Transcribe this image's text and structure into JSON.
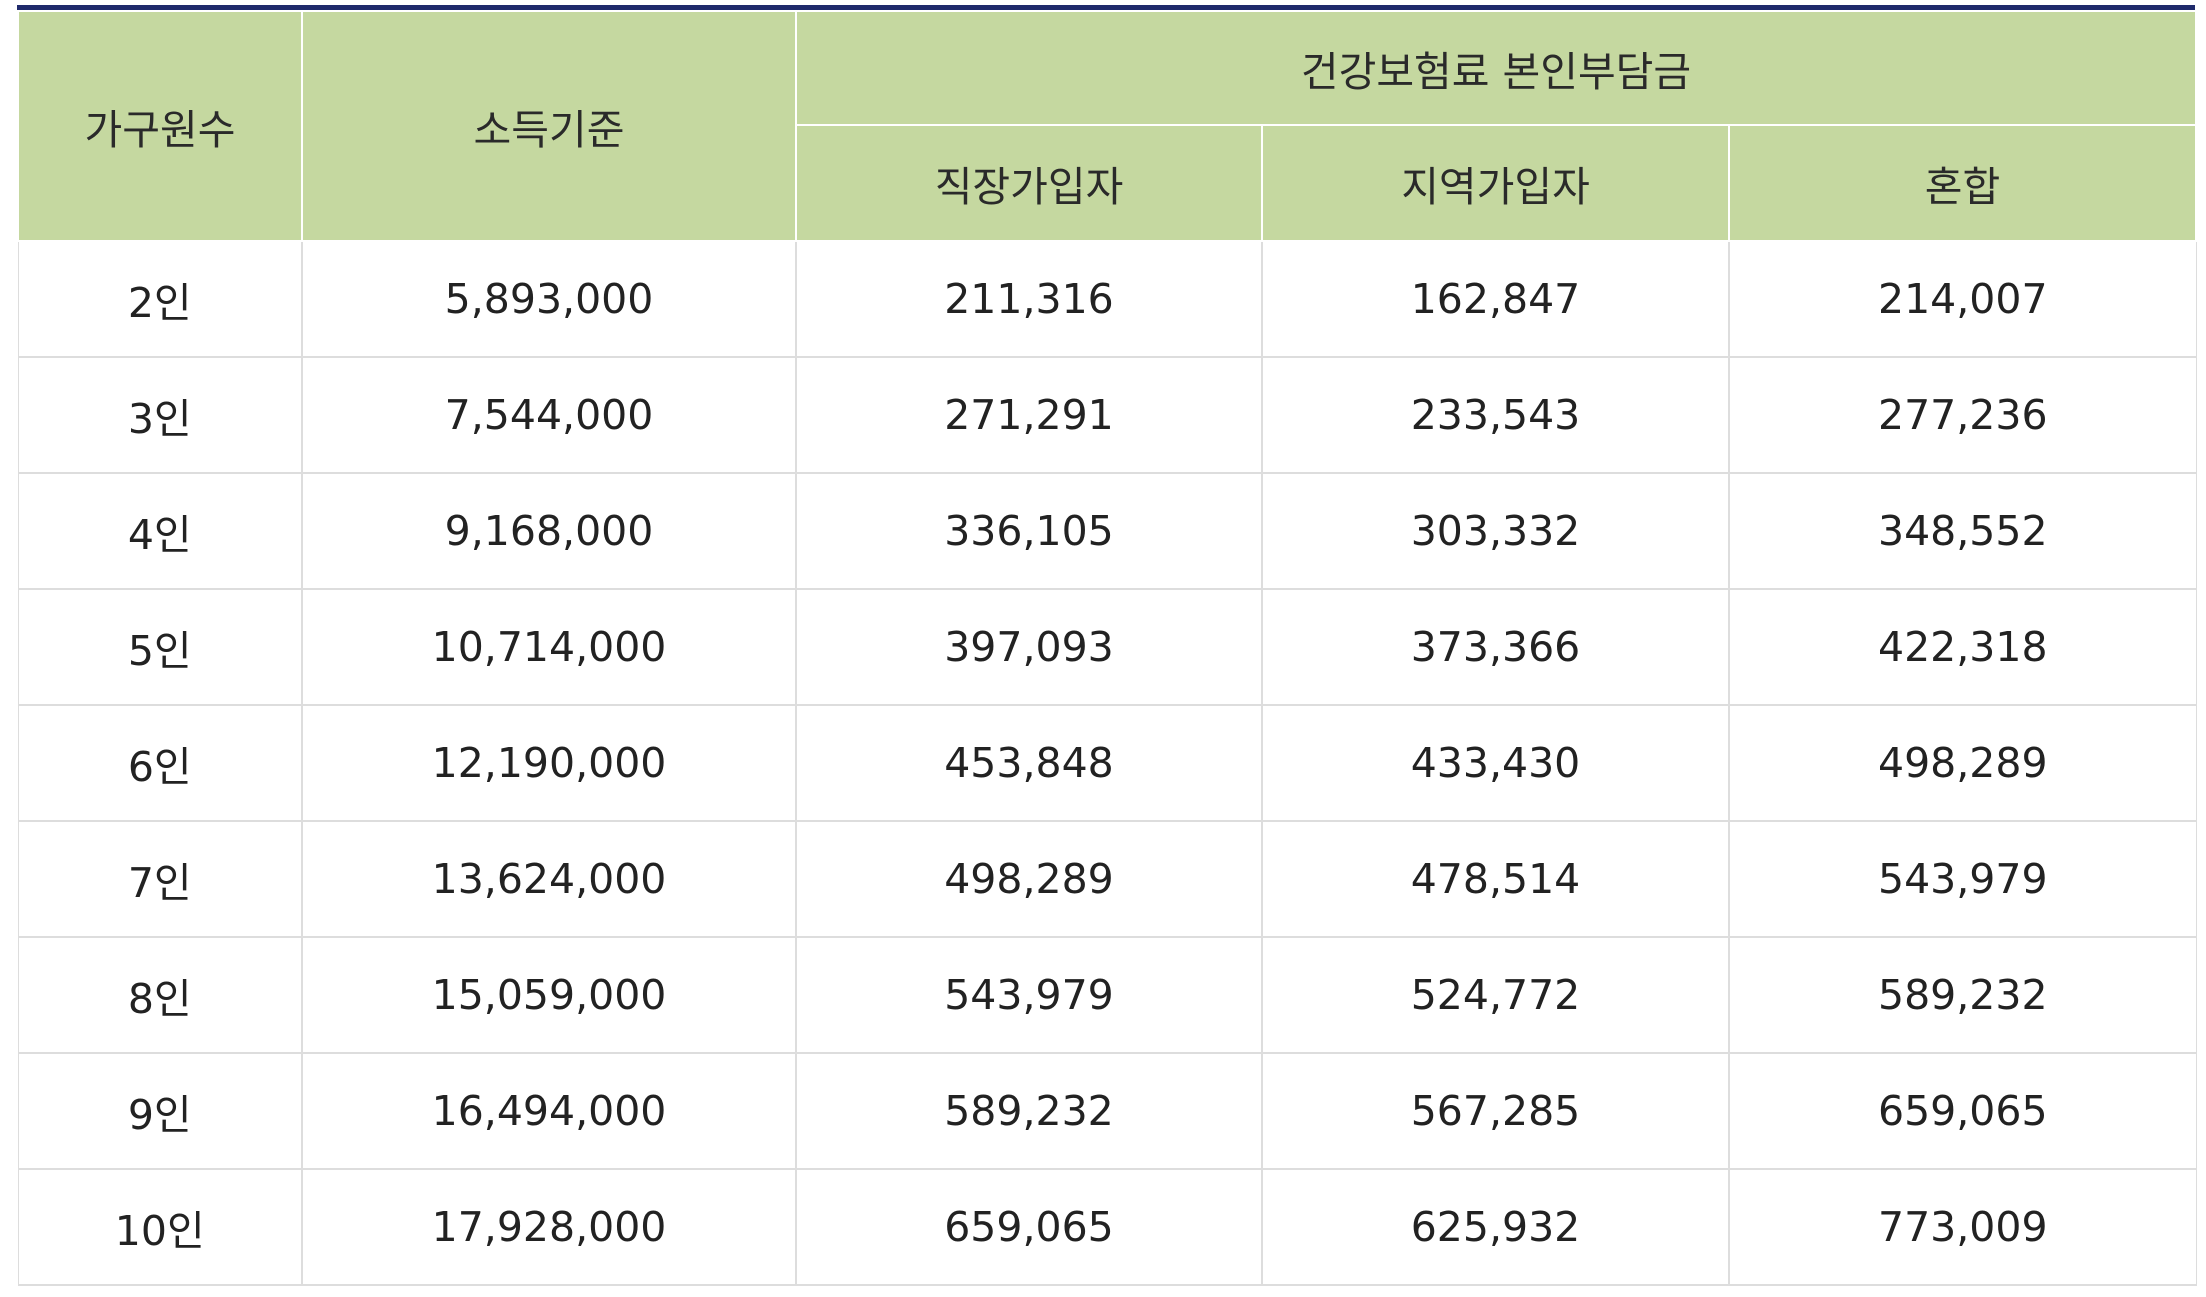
{
  "headers": {
    "household": "가구원수",
    "income": "소득기준",
    "group": "건강보험료 본인부담금",
    "employee": "직장가입자",
    "regional": "지역가입자",
    "mixed": "혼합"
  },
  "rows": [
    {
      "household": "2인",
      "income": "5,893,000",
      "employee": "211,316",
      "regional": "162,847",
      "mixed": "214,007"
    },
    {
      "household": "3인",
      "income": "7,544,000",
      "employee": "271,291",
      "regional": "233,543",
      "mixed": "277,236"
    },
    {
      "household": "4인",
      "income": "9,168,000",
      "employee": "336,105",
      "regional": "303,332",
      "mixed": "348,552"
    },
    {
      "household": "5인",
      "income": "10,714,000",
      "employee": "397,093",
      "regional": "373,366",
      "mixed": "422,318"
    },
    {
      "household": "6인",
      "income": "12,190,000",
      "employee": "453,848",
      "regional": "433,430",
      "mixed": "498,289"
    },
    {
      "household": "7인",
      "income": "13,624,000",
      "employee": "498,289",
      "regional": "478,514",
      "mixed": "543,979"
    },
    {
      "household": "8인",
      "income": "15,059,000",
      "employee": "543,979",
      "regional": "524,772",
      "mixed": "589,232"
    },
    {
      "household": "9인",
      "income": "16,494,000",
      "employee": "589,232",
      "regional": "567,285",
      "mixed": "659,065"
    },
    {
      "household": "10인",
      "income": "17,928,000",
      "employee": "659,065",
      "regional": "625,932",
      "mixed": "773,009"
    }
  ]
}
